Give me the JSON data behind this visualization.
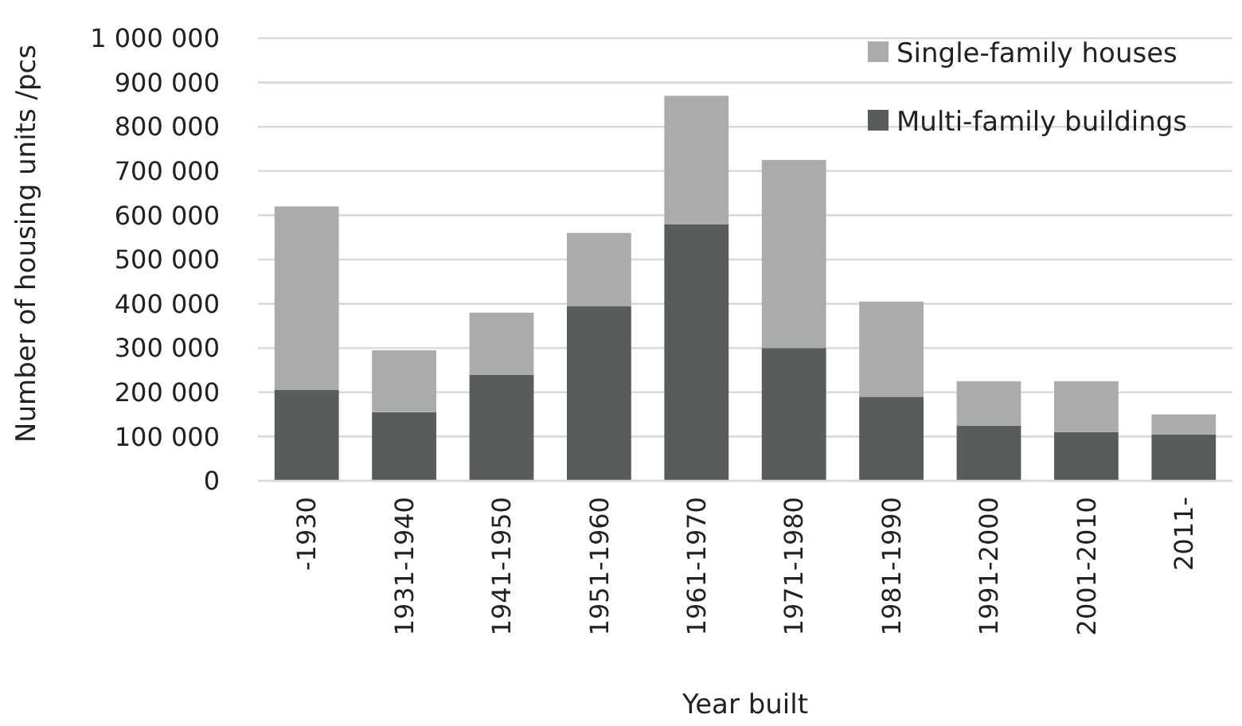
{
  "chart_data": {
    "type": "bar",
    "stacked": true,
    "xlabel": "Year built",
    "ylabel": "Number of housing units /pcs",
    "categories": [
      "-1930",
      "1931-1940",
      "1941-1950",
      "1951-1960",
      "1961-1970",
      "1971-1980",
      "1981-1990",
      "1991-2000",
      "2001-2010",
      "2011-"
    ],
    "series": [
      {
        "name": "Multi-family buildings",
        "color": "#585c5d",
        "values": [
          205000,
          155000,
          240000,
          395000,
          580000,
          300000,
          190000,
          125000,
          110000,
          105000
        ]
      },
      {
        "name": "Single-family houses",
        "color": "#a9abac",
        "values": [
          415000,
          140000,
          140000,
          165000,
          290000,
          425000,
          215000,
          100000,
          115000,
          45000
        ]
      }
    ],
    "ylim": [
      0,
      1000000
    ],
    "yticks": [
      {
        "value": 0,
        "label": "0"
      },
      {
        "value": 100000,
        "label": "100 000"
      },
      {
        "value": 200000,
        "label": "200 000"
      },
      {
        "value": 300000,
        "label": "300 000"
      },
      {
        "value": 400000,
        "label": "400 000"
      },
      {
        "value": 500000,
        "label": "500 000"
      },
      {
        "value": 600000,
        "label": "600 000"
      },
      {
        "value": 700000,
        "label": "700 000"
      },
      {
        "value": 800000,
        "label": "800 000"
      },
      {
        "value": 900000,
        "label": "900 000"
      },
      {
        "value": 1000000,
        "label": "1 000 000"
      }
    ],
    "grid": "y",
    "legend": "top right"
  }
}
